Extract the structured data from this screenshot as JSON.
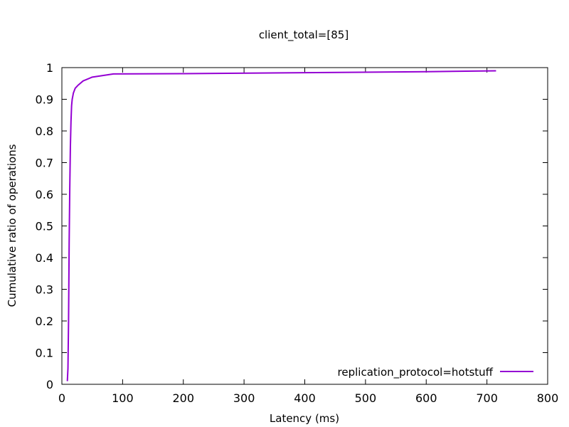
{
  "chart_data": {
    "type": "line",
    "title": "client_total=[85]",
    "xlabel": "Latency (ms)",
    "ylabel": "Cumulative ratio of operations",
    "xlim": [
      0,
      800
    ],
    "ylim": [
      0,
      1
    ],
    "xticks": [
      0,
      100,
      200,
      300,
      400,
      500,
      600,
      700,
      800
    ],
    "yticks": [
      0,
      0.1,
      0.2,
      0.3,
      0.4,
      0.5,
      0.6,
      0.7,
      0.8,
      0.9,
      1
    ],
    "grid": false,
    "legend_position": "bottom-right",
    "series": [
      {
        "name": "replication_protocol=hotstuff",
        "color": "#9400d3",
        "points": [
          [
            9,
            0.01
          ],
          [
            10,
            0.05
          ],
          [
            11,
            0.2
          ],
          [
            12,
            0.45
          ],
          [
            13,
            0.62
          ],
          [
            14,
            0.75
          ],
          [
            15,
            0.83
          ],
          [
            16,
            0.88
          ],
          [
            17,
            0.9
          ],
          [
            19,
            0.92
          ],
          [
            22,
            0.935
          ],
          [
            27,
            0.945
          ],
          [
            35,
            0.958
          ],
          [
            50,
            0.97
          ],
          [
            85,
            0.98
          ],
          [
            200,
            0.981
          ],
          [
            400,
            0.984
          ],
          [
            600,
            0.987
          ],
          [
            715,
            0.99
          ]
        ]
      }
    ]
  }
}
